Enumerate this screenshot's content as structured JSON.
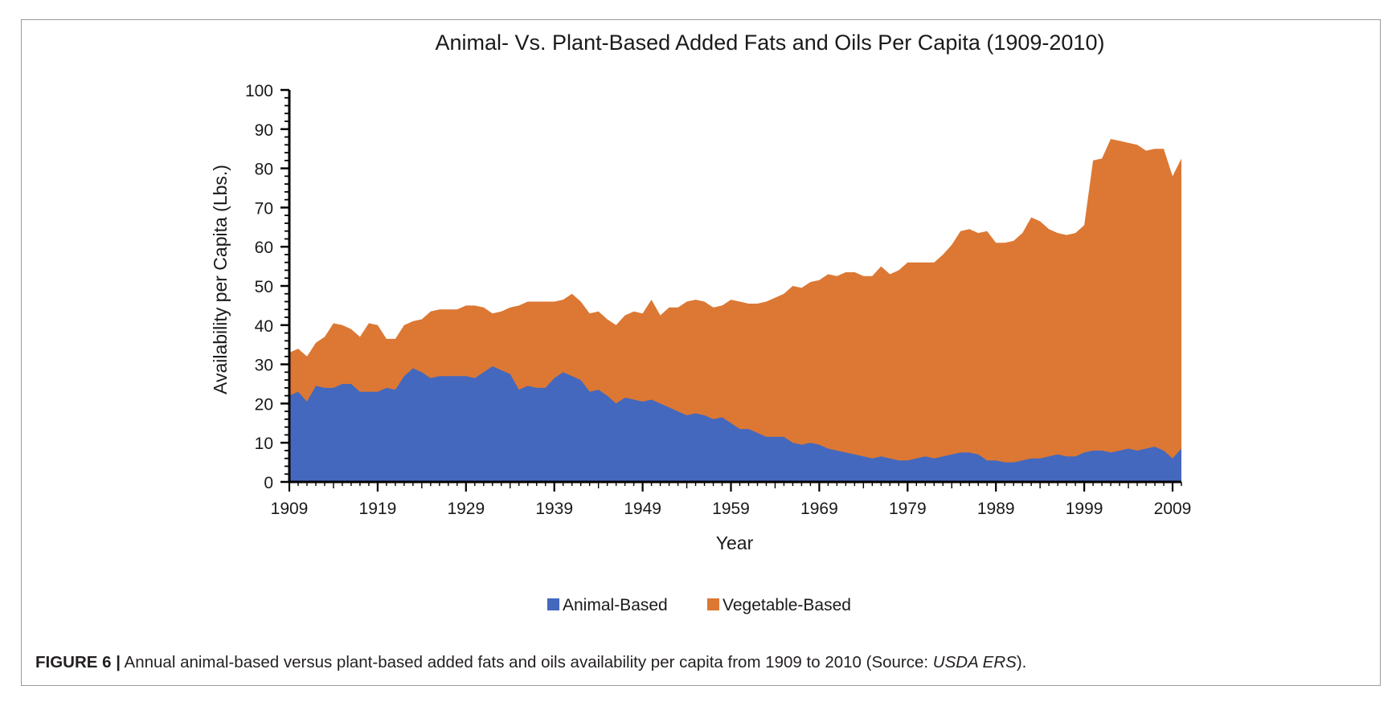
{
  "figure": {
    "label": "FIGURE 6 |",
    "caption_text": " Annual animal-based versus plant-based added fats and oils availability per capita from 1909 to 2010 (Source: ",
    "caption_source": "USDA ERS",
    "caption_end": ")."
  },
  "colors": {
    "animal": "#4468be",
    "vegetable": "#dc7834",
    "axis": "#000000",
    "text": "#1a1a1a"
  },
  "chart_data": {
    "type": "area",
    "stacked": true,
    "title": "Animal- Vs. Plant-Based Added Fats and Oils Per Capita (1909-2010)",
    "xlabel": "Year",
    "ylabel": "Availability per Capita (Lbs.)",
    "xlim": [
      1909,
      2010
    ],
    "ylim": [
      0,
      100
    ],
    "x_ticks": [
      1909,
      1919,
      1929,
      1939,
      1949,
      1959,
      1969,
      1979,
      1989,
      1999,
      2009
    ],
    "y_ticks": [
      0,
      10,
      20,
      30,
      40,
      50,
      60,
      70,
      80,
      90,
      100
    ],
    "grid": false,
    "legend_position": "bottom",
    "series": [
      {
        "name": "Animal-Based",
        "points": [
          [
            1909,
            22
          ],
          [
            1910,
            23
          ],
          [
            1911,
            20.5
          ],
          [
            1912,
            24.5
          ],
          [
            1913,
            24
          ],
          [
            1914,
            24
          ],
          [
            1915,
            25
          ],
          [
            1916,
            25
          ],
          [
            1917,
            23
          ],
          [
            1918,
            23
          ],
          [
            1919,
            23
          ],
          [
            1920,
            24
          ],
          [
            1921,
            23.5
          ],
          [
            1922,
            27
          ],
          [
            1923,
            29
          ],
          [
            1924,
            28
          ],
          [
            1925,
            26.5
          ],
          [
            1926,
            27
          ],
          [
            1927,
            27
          ],
          [
            1928,
            27
          ],
          [
            1929,
            27
          ],
          [
            1930,
            26.5
          ],
          [
            1931,
            28
          ],
          [
            1932,
            29.5
          ],
          [
            1933,
            28.5
          ],
          [
            1934,
            27.5
          ],
          [
            1935,
            23.5
          ],
          [
            1936,
            24.5
          ],
          [
            1937,
            24
          ],
          [
            1938,
            24
          ],
          [
            1939,
            26.5
          ],
          [
            1940,
            28
          ],
          [
            1941,
            27
          ],
          [
            1942,
            26
          ],
          [
            1943,
            23
          ],
          [
            1944,
            23.5
          ],
          [
            1945,
            22
          ],
          [
            1946,
            20
          ],
          [
            1947,
            21.5
          ],
          [
            1948,
            21
          ],
          [
            1949,
            20.5
          ],
          [
            1950,
            21
          ],
          [
            1951,
            20
          ],
          [
            1952,
            19
          ],
          [
            1953,
            18
          ],
          [
            1954,
            17
          ],
          [
            1955,
            17.5
          ],
          [
            1956,
            17
          ],
          [
            1957,
            16
          ],
          [
            1958,
            16.5
          ],
          [
            1959,
            15
          ],
          [
            1960,
            13.5
          ],
          [
            1961,
            13.5
          ],
          [
            1962,
            12.5
          ],
          [
            1963,
            11.5
          ],
          [
            1964,
            11.5
          ],
          [
            1965,
            11.5
          ],
          [
            1966,
            10
          ],
          [
            1967,
            9.5
          ],
          [
            1968,
            10
          ],
          [
            1969,
            9.5
          ],
          [
            1970,
            8.5
          ],
          [
            1971,
            8
          ],
          [
            1972,
            7.5
          ],
          [
            1973,
            7
          ],
          [
            1974,
            6.5
          ],
          [
            1975,
            6
          ],
          [
            1976,
            6.5
          ],
          [
            1977,
            6
          ],
          [
            1978,
            5.5
          ],
          [
            1979,
            5.5
          ],
          [
            1980,
            6
          ],
          [
            1981,
            6.5
          ],
          [
            1982,
            6
          ],
          [
            1983,
            6.5
          ],
          [
            1984,
            7
          ],
          [
            1985,
            7.5
          ],
          [
            1986,
            7.5
          ],
          [
            1987,
            7
          ],
          [
            1988,
            5.5
          ],
          [
            1989,
            5.5
          ],
          [
            1990,
            5
          ],
          [
            1991,
            5
          ],
          [
            1992,
            5.5
          ],
          [
            1993,
            6
          ],
          [
            1994,
            6
          ],
          [
            1995,
            6.5
          ],
          [
            1996,
            7
          ],
          [
            1997,
            6.5
          ],
          [
            1998,
            6.5
          ],
          [
            1999,
            7.5
          ],
          [
            2000,
            8
          ],
          [
            2001,
            8
          ],
          [
            2002,
            7.5
          ],
          [
            2003,
            8
          ],
          [
            2004,
            8.5
          ],
          [
            2005,
            8
          ],
          [
            2006,
            8.5
          ],
          [
            2007,
            9
          ],
          [
            2008,
            8
          ],
          [
            2009,
            6
          ],
          [
            2010,
            8.5
          ]
        ]
      },
      {
        "name": "Vegetable-Based",
        "total_points": [
          [
            1909,
            33
          ],
          [
            1910,
            34
          ],
          [
            1911,
            32
          ],
          [
            1912,
            35.5
          ],
          [
            1913,
            37
          ],
          [
            1914,
            40.5
          ],
          [
            1915,
            40
          ],
          [
            1916,
            39
          ],
          [
            1917,
            37
          ],
          [
            1918,
            40.5
          ],
          [
            1919,
            40
          ],
          [
            1920,
            36.5
          ],
          [
            1921,
            36.5
          ],
          [
            1922,
            40
          ],
          [
            1923,
            41
          ],
          [
            1924,
            41.5
          ],
          [
            1925,
            43.5
          ],
          [
            1926,
            44
          ],
          [
            1927,
            44
          ],
          [
            1928,
            44
          ],
          [
            1929,
            45
          ],
          [
            1930,
            45
          ],
          [
            1931,
            44.5
          ],
          [
            1932,
            43
          ],
          [
            1933,
            43.5
          ],
          [
            1934,
            44.5
          ],
          [
            1935,
            45
          ],
          [
            1936,
            46
          ],
          [
            1937,
            46
          ],
          [
            1938,
            46
          ],
          [
            1939,
            46
          ],
          [
            1940,
            46.5
          ],
          [
            1941,
            48
          ],
          [
            1942,
            46
          ],
          [
            1943,
            43
          ],
          [
            1944,
            43.5
          ],
          [
            1945,
            41.5
          ],
          [
            1946,
            40
          ],
          [
            1947,
            42.5
          ],
          [
            1948,
            43.5
          ],
          [
            1949,
            43
          ],
          [
            1950,
            46.5
          ],
          [
            1951,
            42.5
          ],
          [
            1952,
            44.5
          ],
          [
            1953,
            44.5
          ],
          [
            1954,
            46
          ],
          [
            1955,
            46.5
          ],
          [
            1956,
            46
          ],
          [
            1957,
            44.5
          ],
          [
            1958,
            45
          ],
          [
            1959,
            46.5
          ],
          [
            1960,
            46
          ],
          [
            1961,
            45.5
          ],
          [
            1962,
            45.5
          ],
          [
            1963,
            46
          ],
          [
            1964,
            47
          ],
          [
            1965,
            48
          ],
          [
            1966,
            50
          ],
          [
            1967,
            49.5
          ],
          [
            1968,
            51
          ],
          [
            1969,
            51.5
          ],
          [
            1970,
            53
          ],
          [
            1971,
            52.5
          ],
          [
            1972,
            53.5
          ],
          [
            1973,
            53.5
          ],
          [
            1974,
            52.5
          ],
          [
            1975,
            52.5
          ],
          [
            1976,
            55
          ],
          [
            1977,
            53
          ],
          [
            1978,
            54
          ],
          [
            1979,
            56
          ],
          [
            1980,
            56
          ],
          [
            1981,
            56
          ],
          [
            1982,
            56
          ],
          [
            1983,
            58
          ],
          [
            1984,
            60.5
          ],
          [
            1985,
            64
          ],
          [
            1986,
            64.5
          ],
          [
            1987,
            63.5
          ],
          [
            1988,
            64
          ],
          [
            1989,
            61
          ],
          [
            1990,
            61
          ],
          [
            1991,
            61.5
          ],
          [
            1992,
            63.5
          ],
          [
            1993,
            67.5
          ],
          [
            1994,
            66.5
          ],
          [
            1995,
            64.5
          ],
          [
            1996,
            63.5
          ],
          [
            1997,
            63
          ],
          [
            1998,
            63.5
          ],
          [
            1999,
            65.5
          ],
          [
            2000,
            82
          ],
          [
            2001,
            82.5
          ],
          [
            2002,
            87.5
          ],
          [
            2003,
            87
          ],
          [
            2004,
            86.5
          ],
          [
            2005,
            86
          ],
          [
            2006,
            84.5
          ],
          [
            2007,
            85
          ],
          [
            2008,
            85
          ],
          [
            2009,
            78
          ],
          [
            2010,
            82.5
          ]
        ]
      }
    ]
  }
}
